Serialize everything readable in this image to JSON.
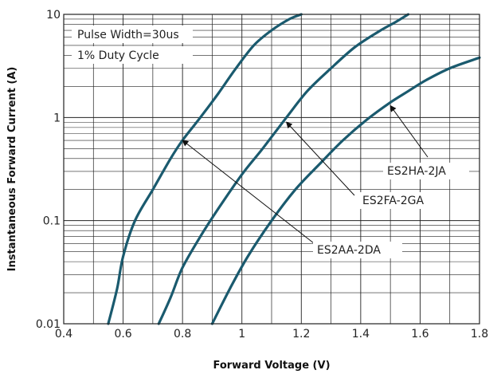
{
  "chart_data": {
    "type": "line",
    "title": "",
    "xlabel": "Forward Voltage (V)",
    "ylabel": "Instantaneous Forward Current (A)",
    "xlim": [
      0.4,
      1.8
    ],
    "ylim": [
      0.01,
      10
    ],
    "yscale": "log",
    "grid": true,
    "series_color": "#1a5a6e",
    "x_ticks": [
      "0.4",
      "0.6",
      "0.8",
      "1",
      "1.2",
      "1.4",
      "1.6",
      "1.8"
    ],
    "y_ticks": [
      "0.01",
      "0.1",
      "1",
      "10"
    ],
    "conditions": [
      "Pulse Width=30us",
      "1% Duty Cycle"
    ],
    "series": [
      {
        "name": "ES2AA-2DA",
        "x": [
          0.55,
          0.58,
          0.6,
          0.64,
          0.7,
          0.76,
          0.8,
          0.86,
          0.92,
          0.98,
          1.04,
          1.1,
          1.16,
          1.2
        ],
        "y": [
          0.01,
          0.022,
          0.045,
          0.1,
          0.2,
          0.4,
          0.6,
          1.0,
          1.7,
          3.0,
          5.0,
          7.0,
          9.0,
          10
        ]
      },
      {
        "name": "ES2FA-2GA",
        "x": [
          0.72,
          0.76,
          0.8,
          0.86,
          0.92,
          1.0,
          1.07,
          1.15,
          1.22,
          1.3,
          1.38,
          1.46,
          1.52,
          1.56
        ],
        "y": [
          0.01,
          0.018,
          0.035,
          0.07,
          0.13,
          0.28,
          0.5,
          1.0,
          1.8,
          3.0,
          4.8,
          6.8,
          8.5,
          10
        ]
      },
      {
        "name": "ES2HA-2JA",
        "x": [
          0.9,
          0.96,
          1.02,
          1.1,
          1.18,
          1.26,
          1.34,
          1.42,
          1.5,
          1.56,
          1.62,
          1.7,
          1.8
        ],
        "y": [
          0.01,
          0.022,
          0.045,
          0.1,
          0.2,
          0.35,
          0.6,
          0.95,
          1.4,
          1.8,
          2.3,
          3.0,
          3.8
        ]
      }
    ],
    "annotations": [
      {
        "text": "ES2HA-2JA",
        "point_x": 1.5,
        "point_y": 1.3
      },
      {
        "text": "ES2FA-2GA",
        "point_x": 1.15,
        "point_y": 0.9
      },
      {
        "text": "ES2AA-2DA",
        "point_x": 0.8,
        "point_y": 0.6
      }
    ]
  }
}
